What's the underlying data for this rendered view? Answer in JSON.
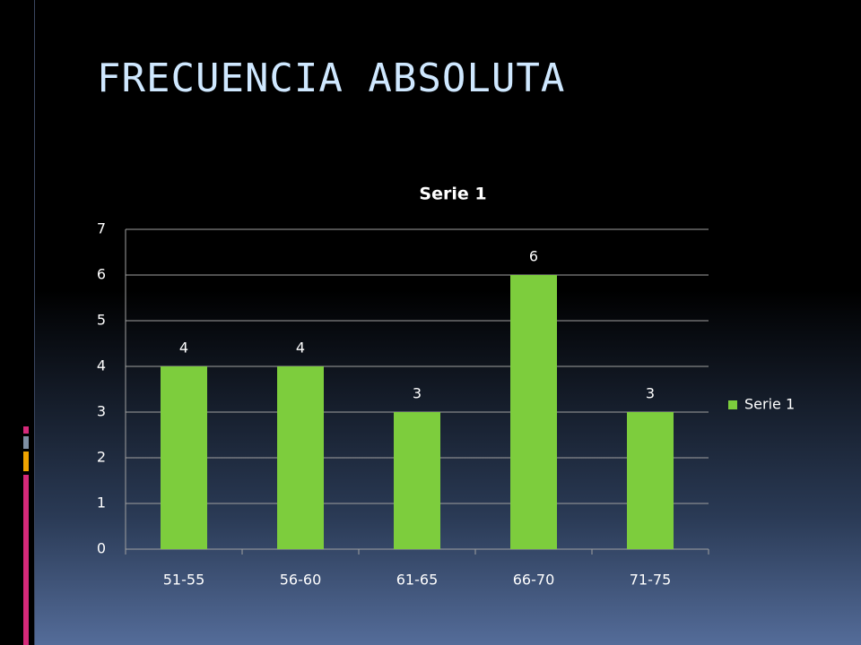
{
  "title": "FRECUENCIA ABSOLUTA",
  "chart_data": {
    "type": "bar",
    "title": "Serie 1",
    "categories": [
      "51-55",
      "56-60",
      "61-65",
      "66-70",
      "71-75"
    ],
    "series": [
      {
        "name": "Serie 1",
        "color": "#7dcd3d",
        "values": [
          4,
          4,
          3,
          6,
          3
        ]
      }
    ],
    "ylim": [
      0,
      7
    ],
    "yticks": [
      0,
      1,
      2,
      3,
      4,
      5,
      6,
      7
    ],
    "grid": true,
    "legend": "right",
    "data_labels": true
  }
}
